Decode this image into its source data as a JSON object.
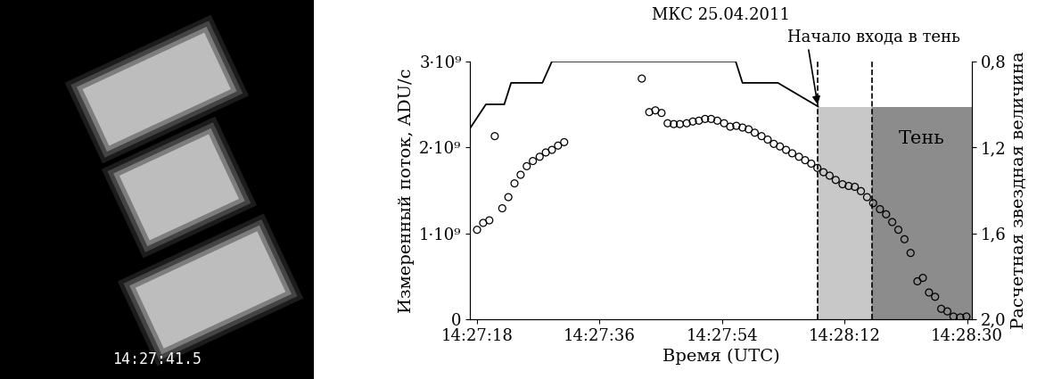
{
  "chart_data": {
    "type": "scatter",
    "title": "МКС 25.04.2011",
    "x_label": "Время (UTC)",
    "y_label": "Измеренный поток, ADU/с",
    "y2_label": "Расчетная звездная величина",
    "xlim": [
      17,
      90.7
    ],
    "xticks": [
      {
        "value": 18,
        "label": "14:27:18"
      },
      {
        "value": 36,
        "label": "14:27:36"
      },
      {
        "value": 54,
        "label": "14:27:54"
      },
      {
        "value": 72,
        "label": "14:28:12"
      },
      {
        "value": 90,
        "label": "14:28:30"
      }
    ],
    "ylim": [
      0,
      3000000000
    ],
    "yticks": [
      0,
      {
        "value": 1000000000,
        "label": "1·10⁹"
      },
      {
        "value": 2000000000,
        "label": "2·10⁹"
      },
      {
        "value": 3000000000,
        "label": "3·10⁹"
      }
    ],
    "y2lim": [
      2.0,
      0.8
    ],
    "y2ticks": [
      {
        "value": 0.8,
        "label": "0,8"
      },
      {
        "value": 1.2,
        "label": "1,2"
      },
      {
        "value": 1.6,
        "label": "1,6"
      },
      {
        "value": 2.0,
        "label": "2,0"
      }
    ],
    "grid": false,
    "series": [
      {
        "type": "scatter",
        "color": "#000000",
        "marker": "o",
        "x": [
          18,
          18.9,
          19.8,
          20.6,
          21.7,
          22.6,
          23.5,
          24.4,
          25.3,
          26.2,
          27.2,
          28.1,
          29,
          29.9,
          30.8,
          42.2,
          43.3,
          44.2,
          45.1,
          46,
          46.9,
          47.8,
          48.8,
          49.7,
          50.6,
          51.5,
          52.4,
          53.3,
          54.3,
          55.2,
          56.1,
          57,
          57.9,
          58.8,
          59.8,
          60.7,
          61.6,
          62.5,
          63.4,
          64.3,
          65.3,
          66.2,
          67.1,
          68,
          68.9,
          69.8,
          70.7,
          71.7,
          72.6,
          73.5,
          74.4,
          75.3,
          76.2,
          77.2,
          78.1,
          79,
          79.9,
          80.8,
          81.7,
          82.7,
          83.5,
          84.4,
          85.3,
          86.2,
          87.1,
          88,
          89,
          89.9
        ],
        "values": [
          1040000000.0,
          1120000000.0,
          1150000000.0,
          2130000000.0,
          1290000000.0,
          1420000000.0,
          1580000000.0,
          1680000000.0,
          1780000000.0,
          1840000000.0,
          1890000000.0,
          1940000000.0,
          1970000000.0,
          2020000000.0,
          2060000000.0,
          2800000000.0,
          2410000000.0,
          2430000000.0,
          2400000000.0,
          2280000000.0,
          2270000000.0,
          2270000000.0,
          2280000000.0,
          2300000000.0,
          2310000000.0,
          2330000000.0,
          2330000000.0,
          2310000000.0,
          2280000000.0,
          2240000000.0,
          2250000000.0,
          2230000000.0,
          2210000000.0,
          2170000000.0,
          2130000000.0,
          2090000000.0,
          2040000000.0,
          2010000000.0,
          1970000000.0,
          1930000000.0,
          1890000000.0,
          1850000000.0,
          1810000000.0,
          1760000000.0,
          1710000000.0,
          1670000000.0,
          1620000000.0,
          1570000000.0,
          1550000000.0,
          1540000000.0,
          1490000000.0,
          1420000000.0,
          1350000000.0,
          1280000000.0,
          1220000000.0,
          1130000000.0,
          1040000000.0,
          930000000.0,
          770000000.0,
          440000000.0,
          480000000.0,
          310000000.0,
          260000000.0,
          120000000.0,
          90000000.0,
          30000000.0,
          20000000.0,
          30000000.0
        ]
      },
      {
        "type": "line",
        "axis": "y2",
        "color": "#000000",
        "line_style": "solid",
        "x": [
          17,
          19.3,
          22,
          23,
          27.6,
          29,
          56,
          57,
          62.2,
          68.1
        ],
        "values": [
          1.11,
          1.0,
          1.0,
          0.9,
          0.9,
          0.8,
          0.8,
          0.9,
          0.9,
          1.01
        ]
      }
    ],
    "shading": [
      {
        "x0": 68.1,
        "x1": 76.0,
        "top": 2470000000,
        "color": "#c8c8c8"
      },
      {
        "x0": 76.0,
        "x1": 90.7,
        "top": 2470000000,
        "color": "#8c8c8c",
        "label": "Тень"
      }
    ],
    "vlines": [
      68.1,
      76.0
    ],
    "annotation": {
      "text": "Начало входа в тень",
      "x": 68.1,
      "y": 2470000000
    }
  },
  "image": {
    "timestamp": "14:27:41.5"
  }
}
